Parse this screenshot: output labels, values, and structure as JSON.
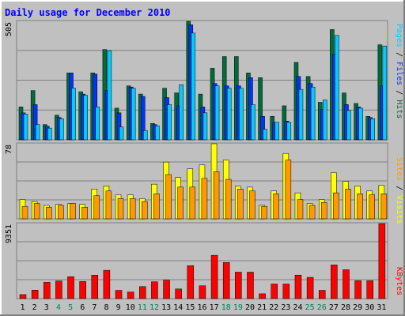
{
  "chart_data": {
    "type": "bar",
    "title": "Daily usage for December 2010",
    "categories": [
      "1",
      "2",
      "3",
      "4",
      "5",
      "6",
      "7",
      "8",
      "9",
      "10",
      "11",
      "12",
      "13",
      "14",
      "15",
      "16",
      "17",
      "18",
      "19",
      "20",
      "21",
      "22",
      "23",
      "24",
      "25",
      "26",
      "27",
      "28",
      "29",
      "30",
      "31"
    ],
    "weekend_days": [
      "4",
      "5",
      "11",
      "12",
      "18",
      "19",
      "25",
      "26"
    ],
    "top_panel": {
      "ymax_label": "505",
      "ymax": 505,
      "legend": [
        "Pages",
        "Files",
        "Hits"
      ],
      "series": [
        {
          "name": "Hits",
          "color": "#006b3b",
          "values": [
            140,
            210,
            65,
            105,
            285,
            205,
            285,
            385,
            135,
            230,
            195,
            70,
            220,
            200,
            505,
            195,
            305,
            355,
            355,
            285,
            265,
            100,
            145,
            330,
            270,
            160,
            470,
            200,
            155,
            100,
            405
          ]
        },
        {
          "name": "Files",
          "color": "#0033ff",
          "values": [
            115,
            150,
            58,
            95,
            285,
            195,
            280,
            210,
            115,
            225,
            185,
            65,
            180,
            145,
            490,
            140,
            240,
            230,
            230,
            265,
            100,
            75,
            80,
            270,
            240,
            130,
            365,
            150,
            140,
            95,
            230
          ]
        },
        {
          "name": "Pages",
          "color": "#00ccff",
          "values": [
            110,
            65,
            50,
            90,
            220,
            190,
            140,
            380,
            55,
            220,
            40,
            60,
            150,
            235,
            455,
            115,
            230,
            220,
            220,
            150,
            45,
            75,
            75,
            215,
            225,
            170,
            445,
            125,
            135,
            90,
            400
          ]
        }
      ]
    },
    "mid_panel": {
      "ymax_label": "78",
      "ymax": 78,
      "legend": [
        "Sites",
        "Visits"
      ],
      "series": [
        {
          "name": "Visits",
          "color": "#ffff00",
          "values": [
            20,
            18,
            14,
            15,
            16,
            15,
            31,
            34,
            25,
            25,
            21,
            36,
            59,
            43,
            52,
            56,
            78,
            61,
            34,
            33,
            14,
            29,
            68,
            27,
            16,
            20,
            48,
            39,
            34,
            29,
            35
          ]
        },
        {
          "name": "Sites",
          "color": "#ff9900",
          "values": [
            13,
            16,
            12,
            14,
            16,
            12,
            24,
            29,
            21,
            21,
            18,
            26,
            46,
            33,
            33,
            42,
            49,
            41,
            31,
            29,
            13,
            26,
            61,
            20,
            14,
            17,
            27,
            31,
            26,
            25,
            26
          ]
        }
      ]
    },
    "bottom_panel": {
      "ymax_label": "9351",
      "ymax": 9351,
      "legend": [
        "KBytes"
      ],
      "series": [
        {
          "name": "KBytes",
          "color": "#ff0000",
          "values": [
            500,
            1050,
            2030,
            2200,
            2730,
            2130,
            2920,
            3530,
            1030,
            820,
            1500,
            2100,
            2300,
            1200,
            4100,
            1600,
            5400,
            4500,
            3300,
            3300,
            600,
            1820,
            1820,
            2930,
            2650,
            1030,
            4200,
            3600,
            2230,
            2230,
            9351
          ]
        }
      ]
    }
  },
  "colors": {
    "background": "#c0c0c0",
    "title": "#0000ff",
    "weekday_label": "#000000",
    "weekend_label": "#00805c"
  }
}
